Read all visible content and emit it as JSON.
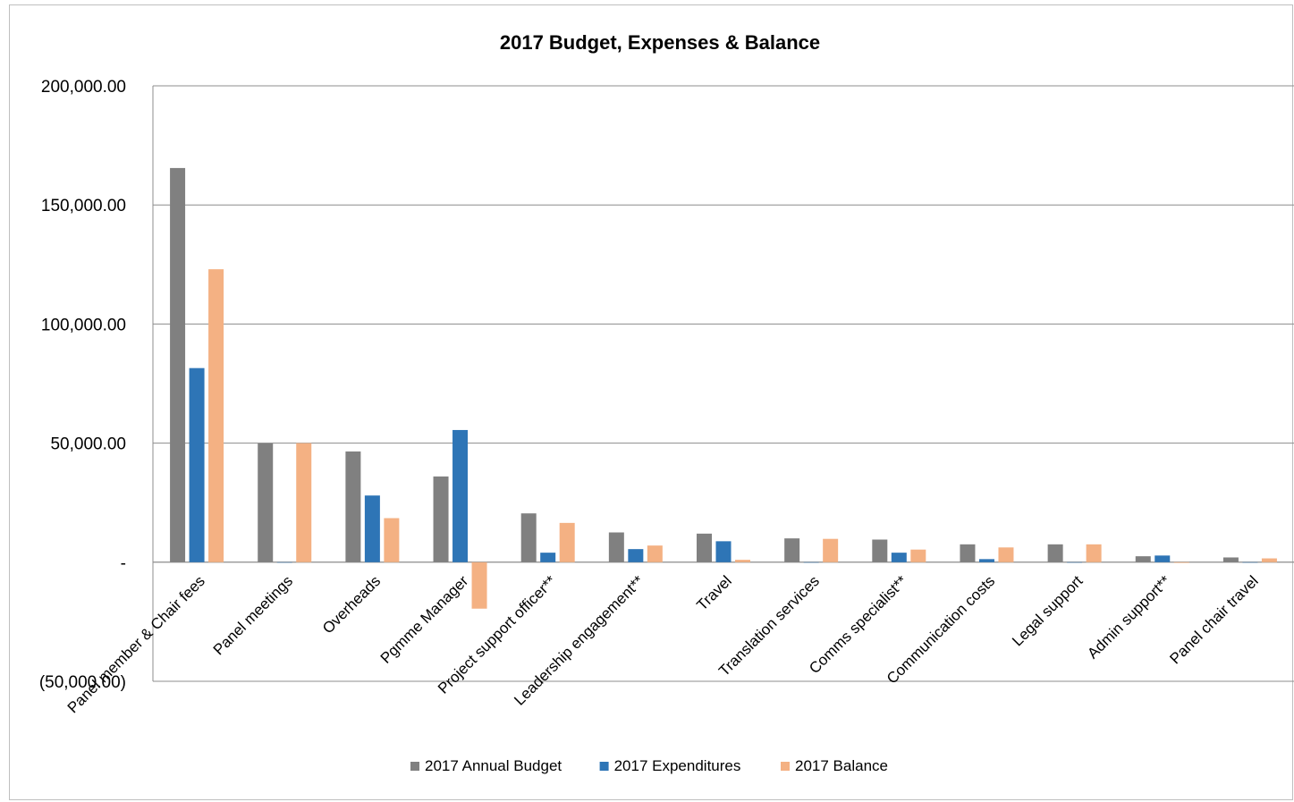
{
  "chart_data": {
    "type": "bar",
    "title": "2017 Budget, Expenses  & Balance",
    "categories": [
      "Panel member & Chair fees",
      "Panel meetings",
      "Overheads",
      "Pgmme Manager",
      "Project support officer**",
      "Leadership engagement**",
      "Travel",
      "Translation services",
      "Comms specialist**",
      "Communication costs",
      "Legal support",
      "Admin support**",
      "Panel chair travel"
    ],
    "series": [
      {
        "name": "2017 Annual Budget",
        "color": "#808080",
        "values": [
          165500,
          50000,
          46500,
          36000,
          20500,
          12500,
          12000,
          10000,
          9500,
          7500,
          7500,
          2500,
          2000
        ]
      },
      {
        "name": "2017 Expenditures",
        "color": "#2e75b6",
        "values": [
          81500,
          0,
          28000,
          55500,
          4000,
          5500,
          8800,
          0,
          4000,
          1300,
          0,
          2800,
          0
        ]
      },
      {
        "name": "2017 Balance",
        "color": "#f4b183",
        "values": [
          123000,
          50000,
          18500,
          -19500,
          16500,
          7000,
          1000,
          9800,
          5300,
          6200,
          7500,
          -300,
          1600
        ]
      }
    ],
    "ylim": [
      -50000,
      200000
    ],
    "yticks": [
      {
        "value": 200000,
        "label": "200,000.00"
      },
      {
        "value": 150000,
        "label": "150,000.00"
      },
      {
        "value": 100000,
        "label": "100,000.00"
      },
      {
        "value": 50000,
        "label": "50,000.00"
      },
      {
        "value": 0,
        "label": "-"
      },
      {
        "value": -50000,
        "label": "(50,000.00)"
      }
    ],
    "grid": true,
    "legend": "bottom",
    "xlabel": "",
    "ylabel": ""
  }
}
